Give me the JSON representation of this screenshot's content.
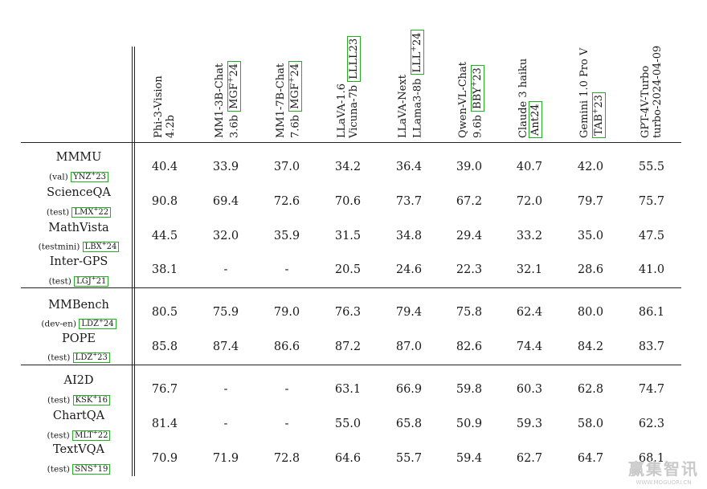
{
  "columns": [
    {
      "line1": "Phi-3-Vision",
      "line2": "4.2b",
      "ref": ""
    },
    {
      "line1": "MM1-3B-Chat",
      "line2": "3.6b",
      "ref": "MGF+24"
    },
    {
      "line1": "MM1-7B-Chat",
      "line2": "7.6b",
      "ref": "MGF+24"
    },
    {
      "line1": "LLaVA-1.6",
      "line2": "Vicuna-7b",
      "ref": "LLLL23"
    },
    {
      "line1": "LLaVA-Next",
      "line2": "LLama3-8b",
      "ref": "LLL+24"
    },
    {
      "line1": "Qwen-VL-Chat",
      "line2": "9.6b",
      "ref": "BBY+23"
    },
    {
      "line1": "Claude 3 haiku",
      "line2": "",
      "ref": "Ant24"
    },
    {
      "line1": "Gemini 1.0 Pro V",
      "line2": "",
      "ref": "TAB+23"
    },
    {
      "line1": "GPT-4V-Turbo",
      "line2": "turbo-2024-04-09",
      "ref": ""
    }
  ],
  "rows": [
    {
      "name": "MMMU",
      "split": "(val)",
      "ref": "YNZ+23",
      "values": [
        "40.4",
        "33.9",
        "37.0",
        "34.2",
        "36.4",
        "39.0",
        "40.7",
        "42.0",
        "55.5"
      ]
    },
    {
      "name": "ScienceQA",
      "split": "(test)",
      "ref": "LMX+22",
      "values": [
        "90.8",
        "69.4",
        "72.6",
        "70.6",
        "73.7",
        "67.2",
        "72.0",
        "79.7",
        "75.7"
      ]
    },
    {
      "name": "MathVista",
      "split": "(testmini)",
      "ref": "LBX+24",
      "values": [
        "44.5",
        "32.0",
        "35.9",
        "31.5",
        "34.8",
        "29.4",
        "33.2",
        "35.0",
        "47.5"
      ]
    },
    {
      "name": "Inter-GPS",
      "split": "(test)",
      "ref": "LGJ+21",
      "values": [
        "38.1",
        "-",
        "-",
        "20.5",
        "24.6",
        "22.3",
        "32.1",
        "28.6",
        "41.0"
      ]
    },
    {
      "name": "MMBench",
      "split": "(dev-en)",
      "ref": "LDZ+24",
      "values": [
        "80.5",
        "75.9",
        "79.0",
        "76.3",
        "79.4",
        "75.8",
        "62.4",
        "80.0",
        "86.1"
      ]
    },
    {
      "name": "POPE",
      "split": "(test)",
      "ref": "LDZ+23",
      "values": [
        "85.8",
        "87.4",
        "86.6",
        "87.2",
        "87.0",
        "82.6",
        "74.4",
        "84.2",
        "83.7"
      ]
    },
    {
      "name": "AI2D",
      "split": "(test)",
      "ref": "KSK+16",
      "values": [
        "76.7",
        "-",
        "-",
        "63.1",
        "66.9",
        "59.8",
        "60.3",
        "62.8",
        "74.7"
      ]
    },
    {
      "name": "ChartQA",
      "split": "(test)",
      "ref": "MLT+22",
      "values": [
        "81.4",
        "-",
        "-",
        "55.0",
        "65.8",
        "50.9",
        "59.3",
        "58.0",
        "62.3"
      ]
    },
    {
      "name": "TextVQA",
      "split": "(test)",
      "ref": "SNS+19",
      "values": [
        "70.9",
        "71.9",
        "72.8",
        "64.6",
        "55.7",
        "59.4",
        "62.7",
        "64.7",
        "68.1"
      ]
    }
  ],
  "watermark": {
    "main": "赢集智讯",
    "sub": "WWW.MOGUORI.CN"
  }
}
